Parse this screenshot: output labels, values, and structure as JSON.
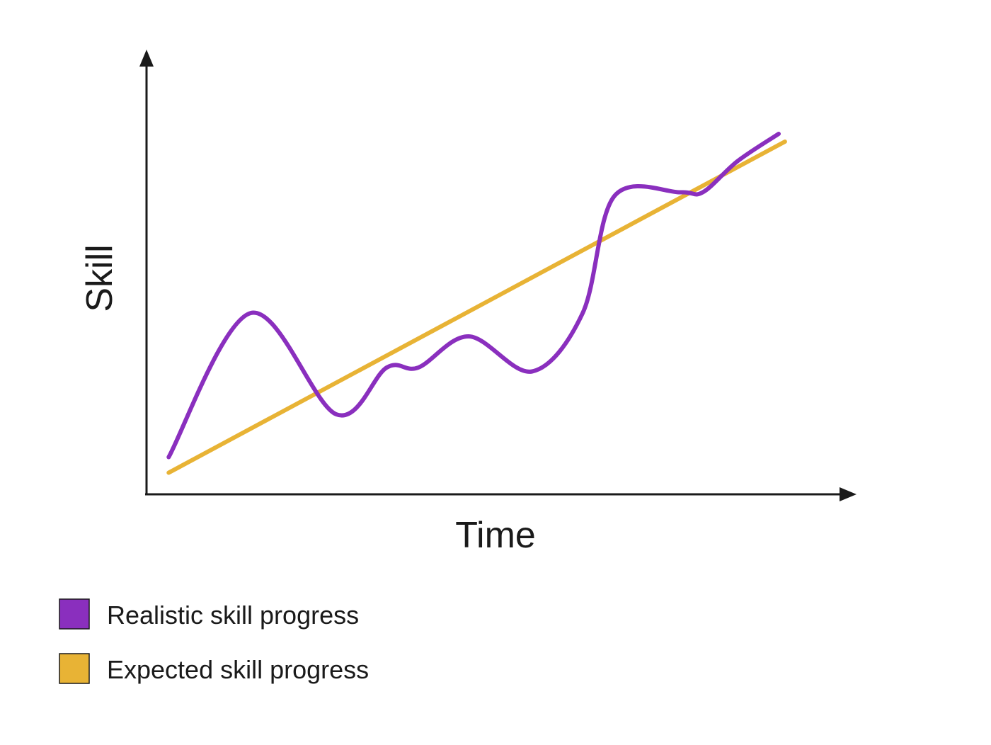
{
  "chart_data": {
    "type": "line",
    "xlabel": "Time",
    "ylabel": "Skill",
    "xlim": [
      0,
      100
    ],
    "ylim": [
      0,
      100
    ],
    "grid": false,
    "legend_position": "bottom-left",
    "tick_labels": false,
    "series": [
      {
        "name": "Realistic skill progress",
        "color": "#8a2fbe",
        "curve": "smooth",
        "x": [
          3.5,
          16.5,
          30,
          38,
          43,
          51,
          61,
          69,
          74,
          84.5,
          88,
          93.5,
          100
        ],
        "y": [
          9,
          46,
          20,
          32,
          32,
          40,
          31,
          46,
          76,
          77,
          77,
          85,
          92
        ]
      },
      {
        "name": "Expected skill progress",
        "color": "#e8b335",
        "curve": "linear",
        "x": [
          3.5,
          101
        ],
        "y": [
          5,
          90
        ]
      }
    ]
  }
}
